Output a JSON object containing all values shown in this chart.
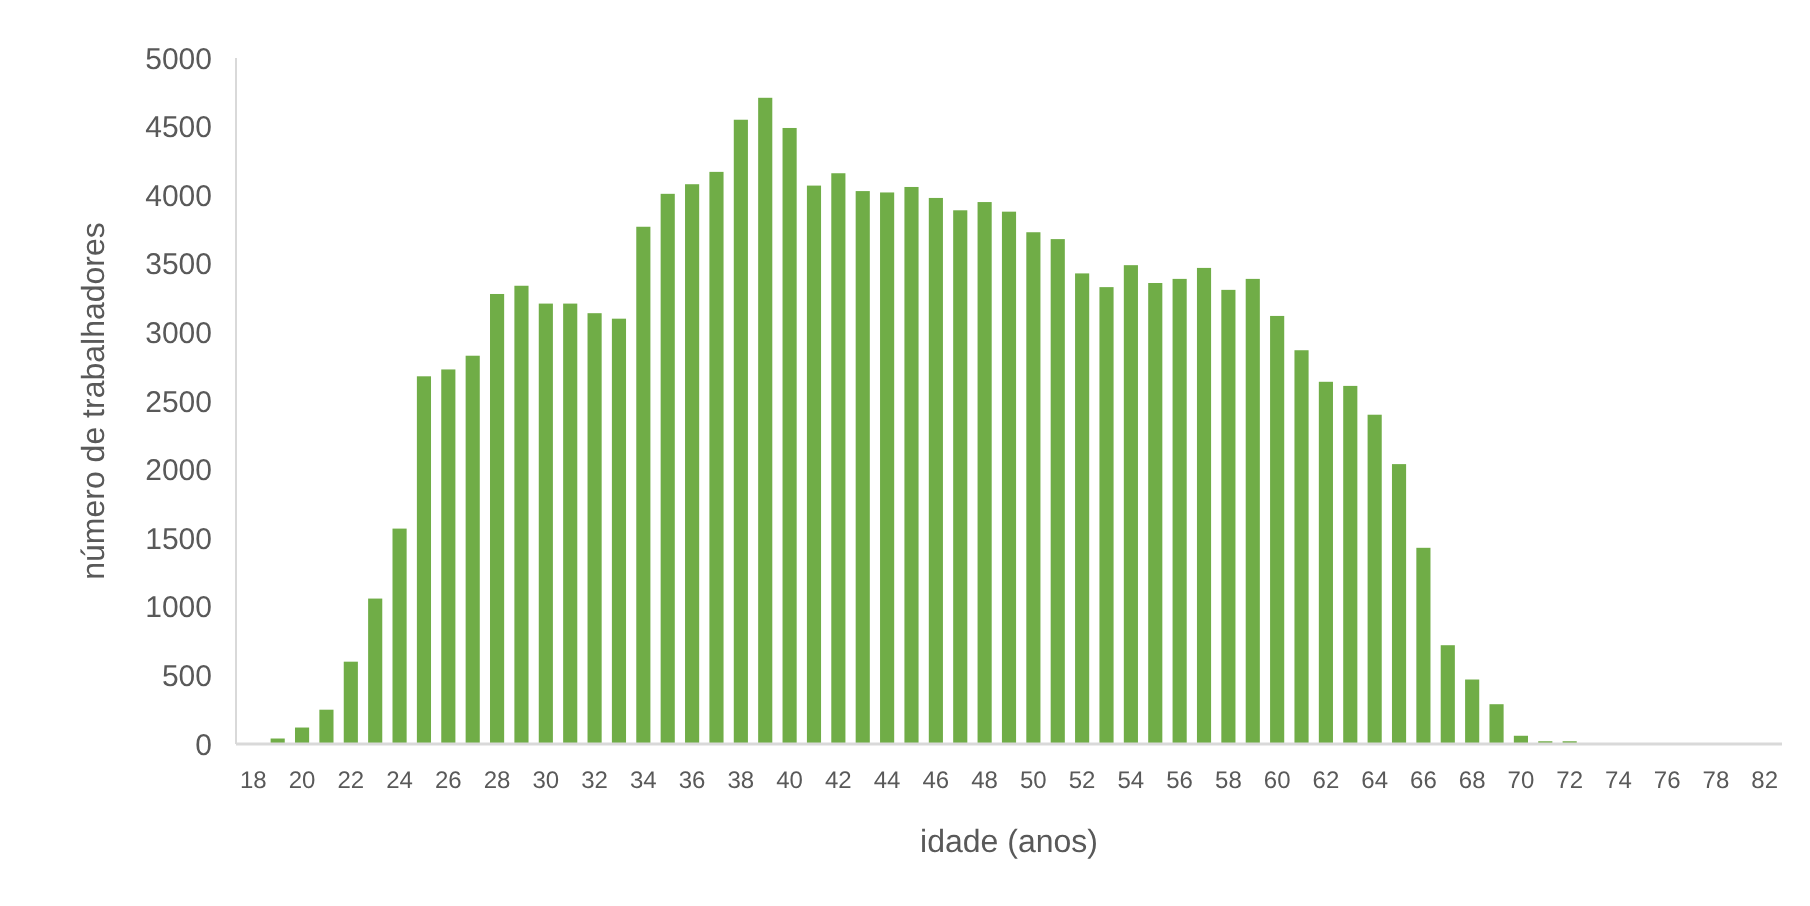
{
  "chart_data": {
    "type": "bar",
    "xlabel": "idade (anos)",
    "ylabel": "número de trabalhadores",
    "categories": [
      "18",
      null,
      "20",
      null,
      "22",
      null,
      "24",
      null,
      "26",
      null,
      "28",
      null,
      "30",
      null,
      "32",
      null,
      "34",
      null,
      "36",
      null,
      "38",
      null,
      "40",
      null,
      "42",
      null,
      "44",
      null,
      "46",
      null,
      "48",
      null,
      "50",
      null,
      "52",
      null,
      "54",
      null,
      "56",
      null,
      "58",
      null,
      "60",
      null,
      "62",
      null,
      "64",
      null,
      "66",
      null,
      "68",
      null,
      "70",
      null,
      "72",
      null,
      "74",
      null,
      "76",
      null,
      "78",
      null,
      "82"
    ],
    "values": [
      0,
      40,
      120,
      250,
      600,
      1060,
      1570,
      2680,
      2730,
      2830,
      3280,
      3340,
      3210,
      3210,
      3140,
      3100,
      3770,
      4010,
      4080,
      4170,
      4550,
      4710,
      4490,
      4070,
      4160,
      4030,
      4020,
      4060,
      3980,
      3890,
      3950,
      3880,
      3730,
      3680,
      3430,
      3330,
      3490,
      3360,
      3390,
      3470,
      3310,
      3390,
      3120,
      2870,
      2640,
      2610,
      2400,
      2040,
      1430,
      720,
      470,
      290,
      60,
      20,
      20,
      0,
      0,
      0,
      0,
      0,
      0,
      0,
      0
    ],
    "color": "#70ad47",
    "ylim": [
      0,
      5000
    ],
    "yticks": [
      0,
      500,
      1000,
      1500,
      2000,
      2500,
      3000,
      3500,
      4000,
      4500,
      5000
    ],
    "grid": false
  }
}
